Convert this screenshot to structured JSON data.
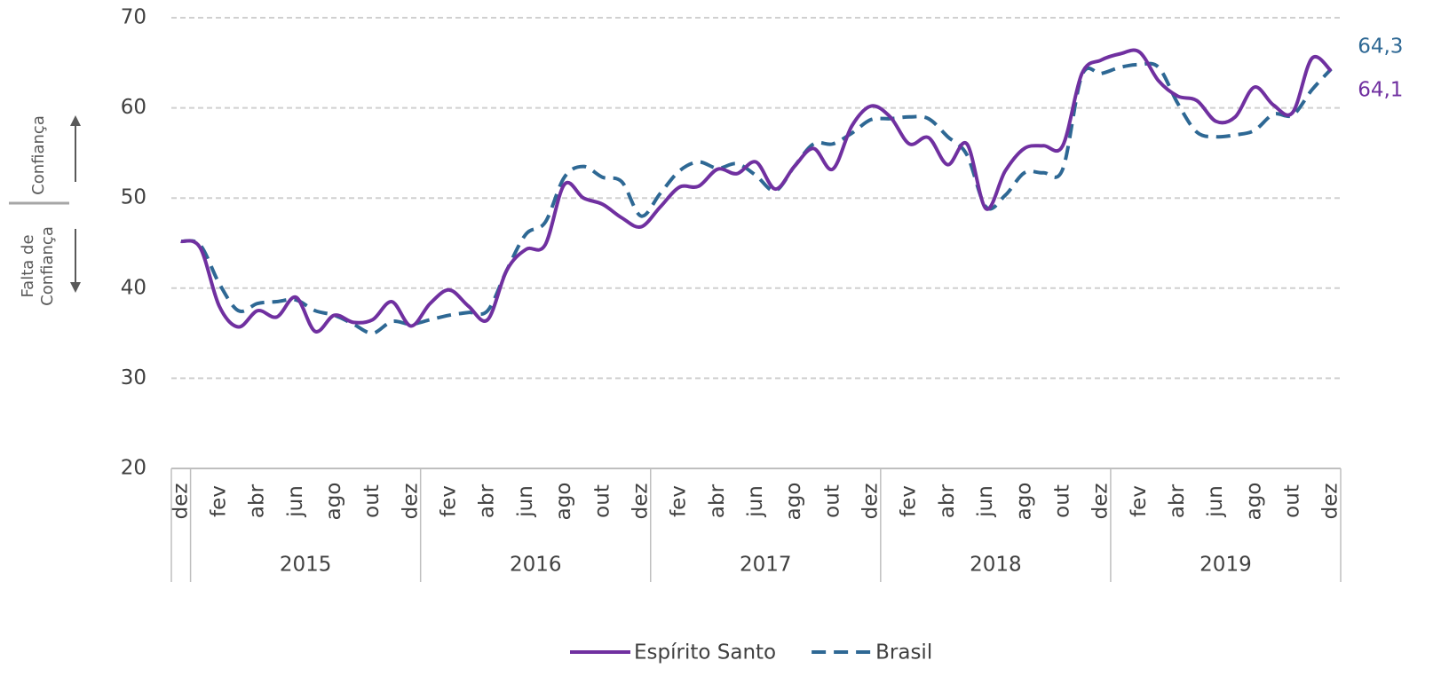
{
  "chart_data": {
    "type": "line",
    "categories": [
      "dez",
      null,
      "fev",
      null,
      "abr",
      null,
      "jun",
      null,
      "ago",
      null,
      "out",
      null,
      "dez",
      null,
      "fev",
      null,
      "abr",
      null,
      "jun",
      null,
      "ago",
      null,
      "out",
      null,
      "dez",
      null,
      "fev",
      null,
      "abr",
      null,
      "jun",
      null,
      "ago",
      null,
      "out",
      null,
      "dez",
      null,
      "fev",
      null,
      "abr",
      null,
      "jun",
      null,
      "ago",
      null,
      "out",
      null,
      "dez",
      null,
      "fev",
      null,
      "abr",
      null,
      "jun",
      null,
      "ago",
      null,
      "out",
      null,
      "dez"
    ],
    "years": [
      "2015",
      "2016",
      "2017",
      "2018",
      "2019"
    ],
    "series": [
      {
        "name": "Espírito Santo",
        "color": "#7030a0",
        "dash": "solid",
        "values": [
          45.2,
          44.5,
          38,
          35.7,
          37.5,
          36.8,
          39,
          35.2,
          37,
          36.2,
          36.5,
          38.5,
          35.8,
          38.3,
          39.8,
          38,
          36.5,
          42,
          44.3,
          44.8,
          51.5,
          50,
          49.3,
          47.8,
          46.8,
          49,
          51.2,
          51.3,
          53.2,
          52.7,
          54,
          51,
          53.5,
          55.5,
          53.2,
          58,
          60.2,
          59,
          56,
          56.7,
          53.7,
          56,
          48.8,
          53,
          55.5,
          55.8,
          55.8,
          63.8,
          65.3,
          66,
          66.2,
          63,
          61.3,
          60.8,
          58.5,
          59,
          62.3,
          60.3,
          59.5,
          65.5,
          64.1
        ],
        "value_labels": [
          null,
          null,
          null,
          null,
          null,
          null,
          null,
          null,
          null,
          null,
          null,
          null,
          null,
          null,
          null,
          null,
          null,
          null,
          null,
          null,
          null,
          null,
          null,
          null,
          null,
          null,
          null,
          null,
          null,
          null,
          null,
          null,
          null,
          null,
          null,
          null,
          null,
          null,
          null,
          null,
          null,
          null,
          null,
          null,
          null,
          null,
          null,
          null,
          null,
          null,
          null,
          null,
          null,
          null,
          null,
          null,
          null,
          null,
          null,
          null,
          "64,1"
        ]
      },
      {
        "name": "Brasil",
        "color": "#2e6894",
        "dash": "dashed",
        "values": [
          45.2,
          44.8,
          40.5,
          37.5,
          38.3,
          38.5,
          38.7,
          37.5,
          37,
          36,
          35,
          36.3,
          36,
          36.5,
          37,
          37.3,
          37.5,
          42,
          46,
          47.3,
          52.3,
          53.5,
          52.3,
          51.8,
          48,
          50.5,
          53,
          54,
          53.3,
          53.8,
          52.5,
          50.8,
          53.5,
          56,
          56,
          57.2,
          58.7,
          58.8,
          59,
          58.8,
          56.8,
          54.8,
          49,
          50.3,
          52.8,
          52.8,
          53.2,
          63.6,
          63.8,
          64.5,
          64.8,
          64.5,
          60.5,
          57.3,
          56.8,
          57,
          57.5,
          59.3,
          59.2,
          62,
          64.3
        ],
        "value_labels": [
          null,
          null,
          null,
          null,
          null,
          null,
          null,
          null,
          null,
          null,
          null,
          null,
          null,
          null,
          null,
          null,
          null,
          null,
          null,
          null,
          null,
          null,
          null,
          null,
          null,
          null,
          null,
          null,
          null,
          null,
          null,
          null,
          null,
          null,
          null,
          null,
          null,
          null,
          null,
          null,
          null,
          null,
          null,
          null,
          null,
          null,
          null,
          null,
          null,
          null,
          null,
          null,
          null,
          null,
          null,
          null,
          null,
          null,
          null,
          null,
          "64,3"
        ]
      }
    ],
    "ylim": [
      20,
      70
    ],
    "yticks": [
      20,
      30,
      40,
      50,
      60,
      70
    ],
    "grid": true,
    "legend": "bottom",
    "annotation_up": "Confiança",
    "annotation_down": [
      "Falta de",
      "Confiança"
    ]
  }
}
